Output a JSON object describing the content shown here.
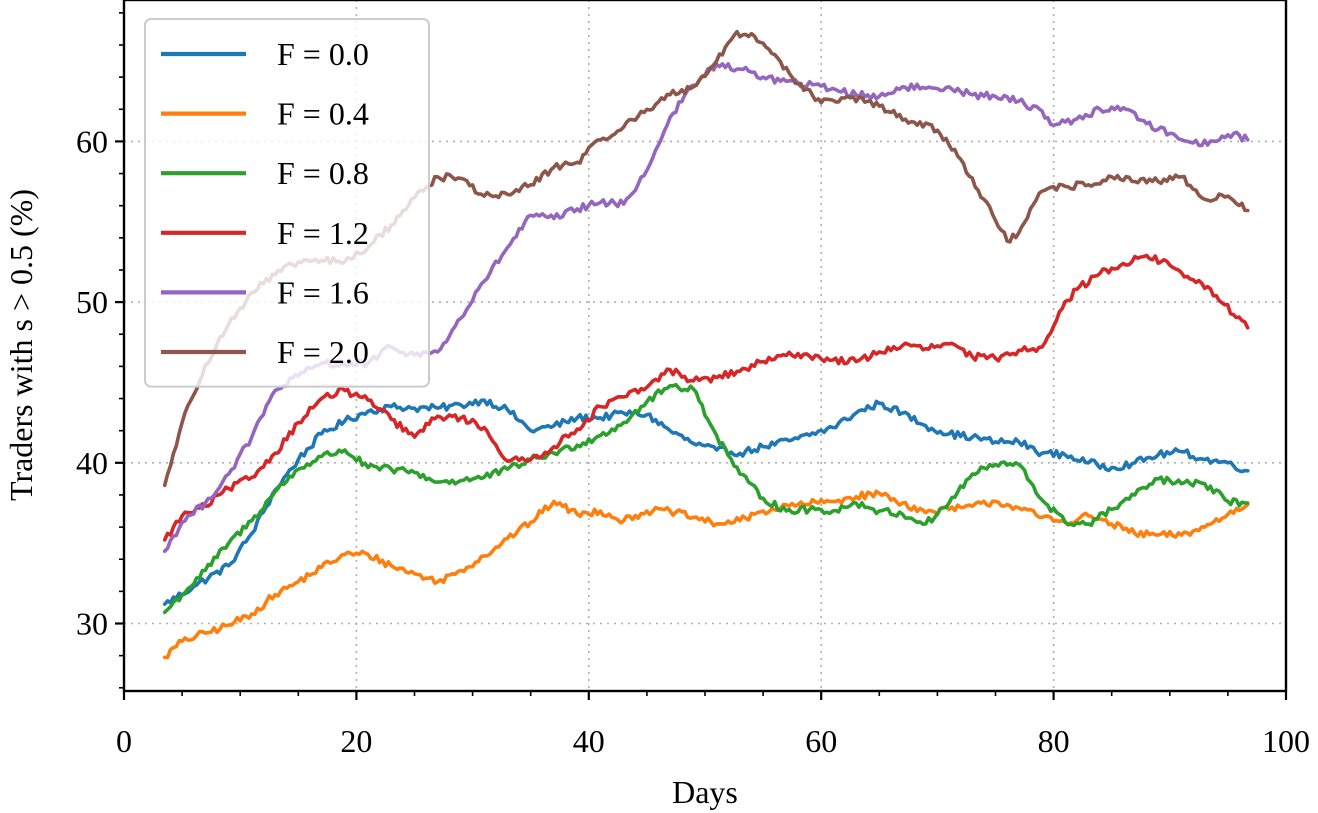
{
  "chart_data": {
    "type": "line",
    "xlabel": "Days",
    "ylabel": "Traders with s > 0.5 (%)",
    "xlim": [
      0,
      100
    ],
    "ylim": [
      25.8,
      68.8
    ],
    "xticks": [
      0,
      20,
      40,
      60,
      80,
      100
    ],
    "yticks": [
      30,
      40,
      50,
      60
    ],
    "xticks_minor_step": 5,
    "yticks_minor_step": 2,
    "grid": true,
    "legend_position": "upper-left",
    "series": [
      {
        "name": "F = 0.0",
        "color": "#1f77b4",
        "x": [
          3.5,
          6,
          9,
          11,
          13,
          15,
          17,
          19,
          21,
          23,
          25,
          27,
          29,
          31,
          33,
          35,
          37,
          39,
          41,
          43,
          45,
          47,
          49,
          51,
          53,
          55,
          58,
          61,
          63,
          65,
          67,
          69,
          71,
          73,
          75,
          77,
          79,
          81,
          83,
          85,
          87,
          89,
          91,
          93,
          95,
          96.7
        ],
        "values": [
          31.2,
          32.3,
          33.6,
          35.6,
          38.3,
          40.2,
          41.8,
          42.6,
          43.2,
          43.5,
          43.4,
          43.4,
          43.6,
          43.9,
          43.3,
          42.0,
          42.3,
          42.8,
          42.8,
          43.1,
          43.0,
          42.0,
          41.2,
          40.8,
          40.6,
          41.0,
          41.5,
          42.2,
          43.1,
          43.7,
          43.1,
          42.3,
          41.8,
          41.6,
          41.3,
          41.3,
          40.6,
          40.5,
          40.0,
          39.7,
          40.0,
          40.5,
          40.7,
          40.2,
          40.0,
          39.5
        ]
      },
      {
        "name": "F = 0.4",
        "color": "#ff7f0e",
        "x": [
          3.5,
          5,
          7,
          9,
          11,
          13,
          15,
          17,
          19,
          21,
          23,
          25,
          27,
          29,
          31,
          33,
          35,
          37,
          39,
          41,
          43,
          45,
          47,
          49,
          51,
          53,
          55,
          58,
          61,
          63,
          65,
          67,
          69,
          71,
          73,
          75,
          77,
          79,
          81,
          83,
          85,
          87,
          89,
          91,
          93,
          95,
          96.7
        ],
        "values": [
          27.9,
          28.9,
          29.4,
          29.9,
          30.6,
          31.8,
          32.6,
          33.5,
          34.3,
          34.3,
          33.6,
          33.1,
          32.6,
          33.3,
          34.2,
          35.3,
          36.3,
          37.6,
          36.8,
          37.0,
          36.4,
          37.0,
          37.0,
          36.6,
          36.2,
          36.4,
          37.0,
          37.4,
          37.6,
          37.9,
          38.1,
          37.5,
          36.9,
          37.1,
          37.3,
          37.6,
          37.2,
          36.6,
          36.3,
          36.7,
          36.2,
          35.6,
          35.5,
          35.5,
          36.0,
          36.8,
          37.4
        ]
      },
      {
        "name": "F = 0.8",
        "color": "#2ca02c",
        "x": [
          3.5,
          5,
          7,
          9,
          11,
          13,
          15,
          17,
          19,
          21,
          23,
          25,
          27,
          29,
          31,
          33,
          35,
          37,
          39,
          41,
          43,
          45,
          47,
          49,
          51,
          53,
          55,
          57,
          59,
          61,
          63,
          65,
          67,
          69,
          71,
          73,
          75,
          77,
          79,
          81,
          83,
          85,
          87,
          89,
          91,
          93,
          95,
          96.7
        ],
        "values": [
          30.7,
          31.8,
          33.3,
          35.0,
          36.4,
          38.2,
          39.6,
          40.4,
          40.8,
          39.7,
          39.6,
          39.4,
          38.8,
          38.9,
          39.1,
          39.6,
          40.2,
          40.6,
          41.1,
          41.7,
          42.5,
          43.8,
          44.8,
          44.6,
          41.7,
          39.3,
          37.8,
          37.0,
          37.1,
          37.0,
          37.5,
          37.0,
          36.8,
          36.2,
          37.5,
          39.3,
          39.9,
          39.9,
          37.7,
          36.3,
          36.2,
          37.1,
          38.0,
          39.0,
          38.7,
          38.7,
          37.6,
          37.5
        ]
      },
      {
        "name": "F = 1.2",
        "color": "#d62728",
        "x": [
          3.5,
          5,
          7,
          9,
          11,
          13,
          15,
          17,
          19,
          21,
          23,
          25,
          27,
          29,
          31,
          33,
          35,
          37,
          39,
          41,
          43,
          45,
          47,
          49,
          51,
          53,
          55,
          58,
          61,
          63,
          65,
          67,
          69,
          71,
          73,
          75,
          77,
          79,
          80.5,
          82,
          84,
          86,
          88,
          90,
          92,
          94,
          96.7
        ],
        "values": [
          35.2,
          36.7,
          37.3,
          38.4,
          39.1,
          40.6,
          42.5,
          44.0,
          44.5,
          43.9,
          42.7,
          41.6,
          42.9,
          42.8,
          42.2,
          40.1,
          40.2,
          41.0,
          42.1,
          43.5,
          44.1,
          44.7,
          45.8,
          45.1,
          45.3,
          45.7,
          46.3,
          46.8,
          46.4,
          46.3,
          46.9,
          47.3,
          47.1,
          47.4,
          46.6,
          46.5,
          47.0,
          47.2,
          49.4,
          50.8,
          51.8,
          52.4,
          52.9,
          52.3,
          51.4,
          50.4,
          48.4
        ]
      },
      {
        "name": "F = 1.6",
        "color": "#9467bd",
        "x": [
          3.5,
          5,
          7,
          9,
          11,
          13,
          15,
          17,
          19,
          21,
          23,
          25,
          27,
          29,
          31,
          33,
          35,
          37,
          39,
          41,
          43,
          45,
          47,
          49,
          51,
          53,
          55,
          58,
          61,
          63,
          65,
          67,
          69,
          71,
          73,
          75,
          77,
          79,
          80,
          82,
          84,
          86,
          88,
          90,
          92,
          94,
          95.5,
          96.7
        ],
        "values": [
          34.5,
          36.3,
          37.5,
          39.3,
          41.6,
          44.5,
          45.4,
          46.2,
          46.1,
          46.2,
          47.2,
          46.7,
          46.9,
          49.0,
          51.3,
          53.4,
          55.4,
          55.2,
          55.8,
          56.2,
          56.1,
          58.2,
          61.5,
          63.5,
          64.8,
          64.5,
          64.0,
          63.6,
          63.3,
          62.9,
          62.8,
          63.4,
          63.3,
          63.4,
          62.9,
          62.8,
          62.5,
          61.9,
          61.0,
          61.4,
          62.0,
          62.1,
          61.1,
          60.5,
          59.9,
          60.0,
          60.5,
          60.1
        ]
      },
      {
        "name": "F = 2.0",
        "color": "#8c564b",
        "x": [
          3.5,
          5,
          7,
          9,
          11,
          13,
          15,
          17,
          19,
          21,
          23,
          25,
          27,
          29,
          31,
          33,
          35,
          37,
          39,
          41,
          43,
          45,
          47,
          49,
          51,
          52.5,
          54,
          56,
          58,
          60,
          62,
          64,
          66,
          68,
          70,
          72,
          74,
          76,
          77,
          79,
          81,
          83,
          85,
          87,
          89,
          91,
          93,
          95,
          96.7
        ],
        "values": [
          38.6,
          42.5,
          46.1,
          48.6,
          50.6,
          51.7,
          52.5,
          52.6,
          52.5,
          53.4,
          54.8,
          56.5,
          57.8,
          57.7,
          56.6,
          56.7,
          57.3,
          58.4,
          58.7,
          60.1,
          60.9,
          62.0,
          62.9,
          63.4,
          65.0,
          66.6,
          66.7,
          65.4,
          63.6,
          62.4,
          62.7,
          62.5,
          61.8,
          61.2,
          60.7,
          58.9,
          56.4,
          53.8,
          54.3,
          56.9,
          57.2,
          57.3,
          57.8,
          57.5,
          57.5,
          57.8,
          56.4,
          56.6,
          55.7
        ]
      }
    ]
  }
}
